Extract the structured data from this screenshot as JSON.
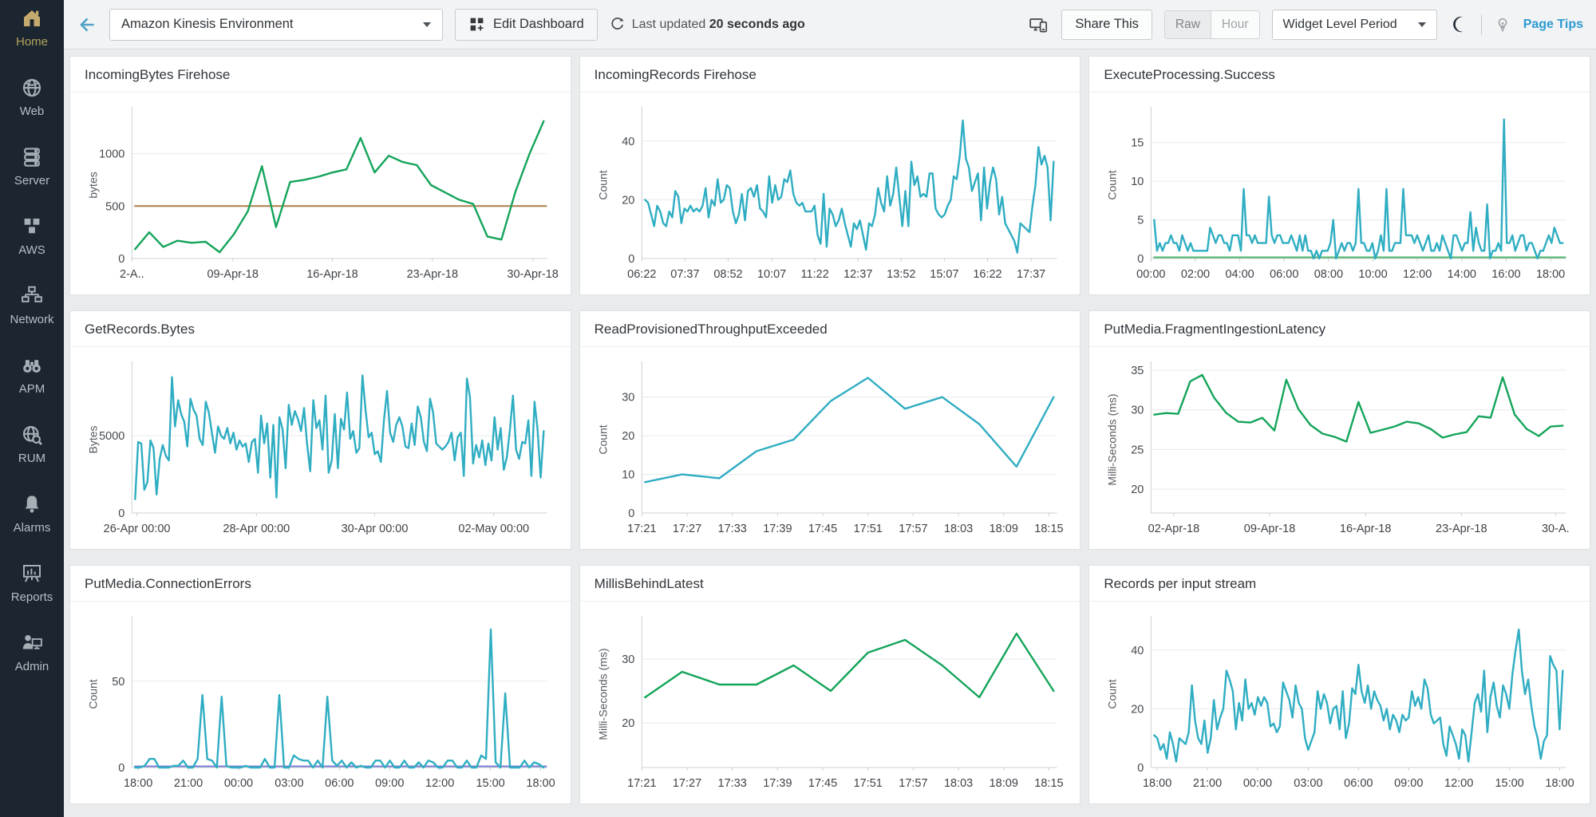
{
  "sidebar": {
    "items": [
      {
        "label": "Home",
        "icon": "home-icon",
        "active": true
      },
      {
        "label": "Web",
        "icon": "globe-icon",
        "active": false
      },
      {
        "label": "Server",
        "icon": "server-icon",
        "active": false
      },
      {
        "label": "AWS",
        "icon": "aws-cubes-icon",
        "active": false
      },
      {
        "label": "Network",
        "icon": "network-icon",
        "active": false
      },
      {
        "label": "APM",
        "icon": "binoculars-icon",
        "active": false
      },
      {
        "label": "RUM",
        "icon": "globe-magnifier-icon",
        "active": false
      },
      {
        "label": "Alarms",
        "icon": "bell-icon",
        "active": false
      },
      {
        "label": "Reports",
        "icon": "presentation-icon",
        "active": false
      },
      {
        "label": "Admin",
        "icon": "admin-icon",
        "active": false
      }
    ]
  },
  "topbar": {
    "environment_value": "Amazon Kinesis Environment",
    "edit_dashboard_label": "Edit Dashboard",
    "last_updated_prefix": "Last updated",
    "last_updated_value": "20 seconds ago",
    "share_label": "Share This",
    "toggle_raw": "Raw",
    "toggle_hour": "Hour",
    "widget_period_label": "Widget Level Period",
    "page_tips_label": "Page Tips"
  },
  "colors": {
    "green": "#14a45a",
    "cyan": "#2fadc2",
    "threshold_brown": "#ac7c4b",
    "baseline_green": "#4db56b",
    "baseline_blue": "#7b7fd4",
    "sidebar_bg": "#1b2630",
    "accent_blue": "#2b9bd3"
  },
  "chart_data": [
    {
      "type": "line",
      "title": "IncomingBytes Firehose",
      "ylabel": "bytes",
      "color": "#14a45a",
      "ylim": [
        0,
        1400
      ],
      "yticks": [
        0,
        500,
        1000
      ],
      "threshold": {
        "value": 500,
        "color": "#ac7c4b"
      },
      "xticks": [
        {
          "l": "2-A..",
          "f": 0.0
        },
        {
          "l": "09-Apr-18",
          "f": 0.243
        },
        {
          "l": "16-Apr-18",
          "f": 0.483
        },
        {
          "l": "23-Apr-18",
          "f": 0.724
        },
        {
          "l": "30-Apr-18",
          "f": 0.966
        }
      ],
      "values": [
        90,
        250,
        110,
        170,
        150,
        160,
        60,
        230,
        450,
        880,
        300,
        730,
        750,
        780,
        820,
        850,
        1150,
        820,
        980,
        920,
        890,
        700,
        630,
        560,
        520,
        210,
        180,
        640,
        1000,
        1310
      ]
    },
    {
      "type": "line",
      "title": "IncomingRecords Firehose",
      "ylabel": "Count",
      "color": "#2fadc2",
      "ylim": [
        0,
        50
      ],
      "yticks": [
        0,
        20,
        40
      ],
      "xticks": [
        {
          "l": "06:22",
          "f": 0.0
        },
        {
          "l": "07:37",
          "f": 0.104
        },
        {
          "l": "08:52",
          "f": 0.208
        },
        {
          "l": "10:07",
          "f": 0.313
        },
        {
          "l": "11:22",
          "f": 0.417
        },
        {
          "l": "12:37",
          "f": 0.521
        },
        {
          "l": "13:52",
          "f": 0.625
        },
        {
          "l": "15:07",
          "f": 0.729
        },
        {
          "l": "16:22",
          "f": 0.833
        },
        {
          "l": "17:37",
          "f": 0.938
        }
      ],
      "values": [
        20,
        19,
        15,
        11,
        18,
        16,
        12,
        11,
        16,
        14,
        23,
        21,
        12,
        17,
        16,
        18,
        16,
        17,
        16,
        18,
        24,
        14,
        20,
        18,
        27,
        19,
        20,
        25,
        24,
        16,
        12,
        15,
        22,
        13,
        23,
        24,
        21,
        25,
        17,
        16,
        14,
        28,
        19,
        25,
        20,
        21,
        27,
        26,
        30,
        22,
        19,
        18,
        19,
        16,
        16,
        16,
        18,
        8,
        5,
        22,
        4,
        17,
        15,
        11,
        13,
        17,
        12,
        8,
        4,
        12,
        10,
        13,
        8,
        3,
        12,
        11,
        15,
        24,
        19,
        16,
        28,
        18,
        22,
        31,
        21,
        11,
        23,
        11,
        33,
        25,
        28,
        21,
        22,
        21,
        29,
        29,
        17,
        15,
        14,
        15,
        18,
        20,
        28,
        27,
        35,
        47,
        34,
        31,
        23,
        26,
        29,
        13,
        31,
        17,
        26,
        31,
        27,
        15,
        21,
        12,
        10,
        8,
        6,
        2,
        12,
        11,
        10,
        9,
        18,
        25,
        38,
        32,
        35,
        31,
        13,
        33
      ]
    },
    {
      "type": "line",
      "title": "ExecuteProcessing.Success",
      "ylabel": "Count",
      "color": "#2fadc2",
      "ylim": [
        0,
        19
      ],
      "yticks": [
        0,
        5,
        10,
        15
      ],
      "baseline": {
        "value": 0,
        "color": "#4db56b"
      },
      "xticks": [
        {
          "l": "00:00",
          "f": 0.0
        },
        {
          "l": "02:00",
          "f": 0.107
        },
        {
          "l": "04:00",
          "f": 0.214
        },
        {
          "l": "06:00",
          "f": 0.321
        },
        {
          "l": "08:00",
          "f": 0.428
        },
        {
          "l": "10:00",
          "f": 0.535
        },
        {
          "l": "12:00",
          "f": 0.642
        },
        {
          "l": "14:00",
          "f": 0.749
        },
        {
          "l": "16:00",
          "f": 0.856
        },
        {
          "l": "18:00",
          "f": 0.963
        }
      ],
      "values": [
        5,
        1,
        2,
        1,
        2,
        2,
        3,
        2,
        2,
        1,
        3,
        2,
        1,
        2,
        1,
        1,
        1,
        1,
        1,
        1,
        4,
        3,
        2,
        3,
        3,
        2,
        2,
        1,
        3,
        3,
        3,
        1,
        9,
        3,
        3,
        2,
        3,
        2,
        2,
        2,
        2,
        8,
        3,
        2,
        3,
        3,
        2,
        2,
        2,
        3,
        2,
        1,
        3,
        1,
        3,
        1,
        1,
        0,
        1,
        0,
        1,
        1,
        1,
        2,
        5,
        0,
        1,
        2,
        1,
        2,
        2,
        1,
        2,
        9,
        2,
        2,
        1,
        1,
        2,
        0,
        1,
        3,
        1,
        9,
        1,
        1,
        2,
        2,
        2,
        9,
        3,
        3,
        3,
        2,
        3,
        2,
        1,
        2,
        3,
        1,
        1,
        2,
        1,
        3,
        2,
        1,
        0,
        3,
        3,
        2,
        1,
        2,
        2,
        6,
        1,
        4,
        2,
        1,
        1,
        7,
        0,
        1,
        1,
        2,
        1,
        18,
        2,
        2,
        3,
        1,
        2,
        3,
        3,
        1,
        2,
        2,
        1,
        0,
        1,
        1,
        2,
        3,
        2,
        4,
        3,
        2,
        2
      ]
    },
    {
      "type": "line",
      "title": "GetRecords.Bytes",
      "ylabel": "Bytes",
      "color": "#2fadc2",
      "ylim": [
        0,
        9500
      ],
      "yticks": [
        0,
        5000
      ],
      "xticks": [
        {
          "l": "26-Apr 00:00",
          "f": 0.012
        },
        {
          "l": "28-Apr 00:00",
          "f": 0.3
        },
        {
          "l": "30-Apr 00:00",
          "f": 0.585
        },
        {
          "l": "02-May 00:00",
          "f": 0.872
        }
      ],
      "values": [
        900,
        4600,
        4500,
        1500,
        2000,
        4700,
        4200,
        1200,
        3500,
        4400,
        3700,
        3400,
        8800,
        5600,
        7300,
        6400,
        5900,
        4300,
        7400,
        6700,
        6300,
        4800,
        4400,
        7200,
        6500,
        5200,
        3900,
        5600,
        5000,
        4800,
        5500,
        4500,
        5200,
        4100,
        4700,
        4300,
        4500,
        3300,
        4600,
        4800,
        2600,
        6300,
        4500,
        5800,
        2300,
        5700,
        1000,
        6200,
        5400,
        2900,
        7000,
        5700,
        6600,
        6100,
        5300,
        6800,
        4400,
        2700,
        7300,
        5500,
        6000,
        4100,
        7600,
        2600,
        3400,
        6400,
        2900,
        6100,
        5400,
        7800,
        4800,
        5300,
        3900,
        4200,
        8900,
        6700,
        4900,
        5200,
        3800,
        4000,
        3300,
        6000,
        7900,
        5200,
        4600,
        5700,
        6200,
        5600,
        4300,
        4200,
        5800,
        4400,
        6900,
        6200,
        4600,
        4000,
        7400,
        6500,
        4500,
        4300,
        4100,
        4300,
        4600,
        5200,
        3400,
        4900,
        5200,
        2400,
        8700,
        7500,
        3200,
        4400,
        3600,
        4700,
        3100,
        4500,
        3400,
        6200,
        4100,
        5500,
        2800,
        3600,
        5400,
        7600,
        4100,
        3500,
        4600,
        4500,
        6000,
        2400,
        7200,
        5400,
        2300,
        5300
      ]
    },
    {
      "type": "line",
      "title": "ReadProvisionedThroughputExceeded",
      "ylabel": "Count",
      "color": "#2fadc2",
      "ylim": [
        0,
        38
      ],
      "yticks": [
        0,
        10,
        20,
        30
      ],
      "xticks": [
        {
          "l": "17:21",
          "f": 0.0
        },
        {
          "l": "17:27",
          "f": 0.109
        },
        {
          "l": "17:33",
          "f": 0.218
        },
        {
          "l": "17:39",
          "f": 0.327
        },
        {
          "l": "17:45",
          "f": 0.436
        },
        {
          "l": "17:51",
          "f": 0.545
        },
        {
          "l": "17:57",
          "f": 0.654
        },
        {
          "l": "18:03",
          "f": 0.763
        },
        {
          "l": "18:09",
          "f": 0.872
        },
        {
          "l": "18:15",
          "f": 0.981
        }
      ],
      "values": [
        8,
        10,
        9,
        16,
        19,
        29,
        35,
        27,
        30,
        23,
        12,
        30
      ]
    },
    {
      "type": "line",
      "title": "PutMedia.FragmentIngestionLatency",
      "ylabel": "Milli-Seconds (ms)",
      "color": "#14a45a",
      "ylim": [
        17,
        35.5
      ],
      "yticks": [
        20,
        25,
        30,
        35
      ],
      "xticks": [
        {
          "l": "02-Apr-18",
          "f": 0.055
        },
        {
          "l": "09-Apr-18",
          "f": 0.286
        },
        {
          "l": "16-Apr-18",
          "f": 0.517
        },
        {
          "l": "23-Apr-18",
          "f": 0.748
        },
        {
          "l": "30-A.",
          "f": 0.975
        }
      ],
      "values": [
        29.4,
        29.6,
        29.5,
        33.6,
        34.4,
        31.5,
        29.6,
        28.5,
        28.4,
        29.0,
        27.4,
        33.8,
        30.1,
        28.1,
        27.0,
        26.6,
        26.0,
        31.0,
        27.1,
        27.5,
        27.9,
        28.5,
        28.3,
        27.6,
        26.5,
        26.9,
        27.2,
        29.2,
        29.0,
        34.1,
        29.4,
        27.6,
        26.7,
        27.9,
        28.0
      ]
    },
    {
      "type": "line",
      "title": "PutMedia.ConnectionErrors",
      "ylabel": "Count",
      "color": "#2fadc2",
      "ylim": [
        0,
        85
      ],
      "yticks": [
        0,
        50
      ],
      "baseline": {
        "value": 0,
        "color": "#7b7fd4"
      },
      "xticks": [
        {
          "l": "18:00",
          "f": 0.015
        },
        {
          "l": "21:00",
          "f": 0.136
        },
        {
          "l": "00:00",
          "f": 0.257
        },
        {
          "l": "03:00",
          "f": 0.379
        },
        {
          "l": "06:00",
          "f": 0.5
        },
        {
          "l": "09:00",
          "f": 0.621
        },
        {
          "l": "12:00",
          "f": 0.742
        },
        {
          "l": "15:00",
          "f": 0.864
        },
        {
          "l": "18:00",
          "f": 0.985
        }
      ],
      "values": [
        0,
        0,
        1,
        5,
        5,
        0,
        0,
        0,
        1,
        1,
        4,
        0,
        0,
        5,
        42,
        5,
        4,
        0,
        41,
        1,
        0,
        0,
        0,
        1,
        0,
        0,
        0,
        5,
        0,
        0,
        42,
        0,
        0,
        7,
        5,
        4,
        4,
        0,
        4,
        0,
        41,
        4,
        1,
        4,
        0,
        3,
        0,
        1,
        0,
        0,
        4,
        4,
        0,
        4,
        0,
        0,
        4,
        0,
        0,
        3,
        0,
        4,
        3,
        0,
        0,
        4,
        4,
        0,
        0,
        4,
        0,
        0,
        7,
        5,
        80,
        3,
        0,
        43,
        0,
        0,
        0,
        4,
        0,
        3,
        2,
        0
      ]
    },
    {
      "type": "line",
      "title": "MillisBehindLatest",
      "ylabel": "Milli-Seconds (ms)",
      "color": "#14a45a",
      "ylim": [
        13,
        36
      ],
      "yticks": [
        20,
        30
      ],
      "xticks": [
        {
          "l": "17:21",
          "f": 0.0
        },
        {
          "l": "17:27",
          "f": 0.109
        },
        {
          "l": "17:33",
          "f": 0.218
        },
        {
          "l": "17:39",
          "f": 0.327
        },
        {
          "l": "17:45",
          "f": 0.436
        },
        {
          "l": "17:51",
          "f": 0.545
        },
        {
          "l": "17:57",
          "f": 0.654
        },
        {
          "l": "18:03",
          "f": 0.763
        },
        {
          "l": "18:09",
          "f": 0.872
        },
        {
          "l": "18:15",
          "f": 0.981
        }
      ],
      "values": [
        24,
        28,
        26,
        26,
        29,
        25,
        31,
        33,
        29,
        24,
        34,
        25
      ]
    },
    {
      "type": "line",
      "title": "Records per input stream",
      "ylabel": "Count",
      "color": "#2fadc2",
      "ylim": [
        0,
        50
      ],
      "yticks": [
        0,
        20,
        40
      ],
      "xticks": [
        {
          "l": "18:00",
          "f": 0.015
        },
        {
          "l": "21:00",
          "f": 0.136
        },
        {
          "l": "00:00",
          "f": 0.257
        },
        {
          "l": "03:00",
          "f": 0.379
        },
        {
          "l": "06:00",
          "f": 0.5
        },
        {
          "l": "09:00",
          "f": 0.621
        },
        {
          "l": "12:00",
          "f": 0.742
        },
        {
          "l": "15:00",
          "f": 0.864
        },
        {
          "l": "18:00",
          "f": 0.985
        }
      ],
      "values": [
        11,
        10,
        6,
        8,
        3,
        12,
        8,
        2,
        10,
        9,
        8,
        12,
        28,
        16,
        10,
        8,
        16,
        5,
        10,
        23,
        13,
        17,
        20,
        33,
        30,
        26,
        13,
        22,
        16,
        30,
        20,
        22,
        18,
        24,
        21,
        24,
        22,
        14,
        15,
        12,
        14,
        29,
        26,
        23,
        17,
        28,
        22,
        20,
        10,
        6,
        9,
        12,
        26,
        20,
        25,
        22,
        15,
        20,
        21,
        13,
        26,
        10,
        15,
        27,
        25,
        35,
        26,
        22,
        28,
        20,
        26,
        23,
        21,
        16,
        20,
        13,
        18,
        16,
        12,
        18,
        16,
        17,
        26,
        21,
        24,
        20,
        30,
        27,
        18,
        15,
        16,
        17,
        8,
        4,
        14,
        11,
        8,
        3,
        13,
        11,
        2,
        12,
        22,
        25,
        19,
        33,
        12,
        24,
        29,
        21,
        17,
        28,
        25,
        20,
        32,
        40,
        47,
        33,
        25,
        30,
        21,
        14,
        10,
        3,
        9,
        11,
        38,
        35,
        33,
        13,
        33
      ]
    }
  ]
}
